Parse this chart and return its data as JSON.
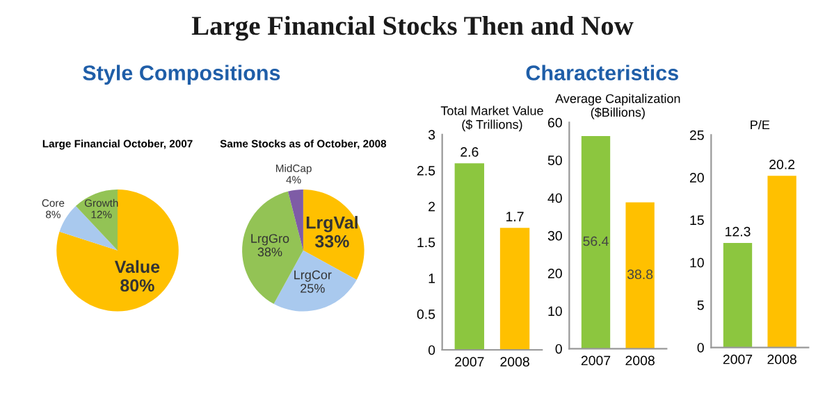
{
  "chart_data": [
    {
      "type": "pie",
      "title": "Large Financial October, 2007",
      "annotations": [
        "Large Financial Stocks Then and Now",
        "Style Compositions"
      ],
      "categories": [
        "Value",
        "Core",
        "Growth"
      ],
      "values": [
        80,
        8,
        12
      ],
      "value_labels": [
        "80%",
        "8%",
        "12%"
      ],
      "colors": [
        "#ffc000",
        "#a9c9ee",
        "#93c355"
      ]
    },
    {
      "type": "pie",
      "title": "Same Stocks as of October, 2008",
      "categories": [
        "LrgVal",
        "LrgCor",
        "LrgGro",
        "MidCap"
      ],
      "values": [
        33,
        25,
        38,
        4
      ],
      "value_labels": [
        "33%",
        "25%",
        "38%",
        "4%"
      ],
      "colors": [
        "#ffc000",
        "#a9c9ee",
        "#93c355",
        "#7e5ca6"
      ]
    },
    {
      "type": "bar",
      "title": "Total Market Value\n($ Trillions)",
      "annotations": [
        "Characteristics"
      ],
      "categories": [
        "2007",
        "2008"
      ],
      "values": [
        2.6,
        1.7
      ],
      "colors": [
        "#8cc63f",
        "#ffc000"
      ],
      "ylim": [
        0,
        3
      ],
      "yticks": [
        0,
        0.5,
        1,
        1.5,
        2,
        2.5,
        3
      ],
      "data_labels": true
    },
    {
      "type": "bar",
      "title": "Average Capitalization\n($Billions)",
      "categories": [
        "2007",
        "2008"
      ],
      "values": [
        56.4,
        38.8
      ],
      "colors": [
        "#8cc63f",
        "#ffc000"
      ],
      "ylim": [
        0,
        60
      ],
      "yticks": [
        0,
        10,
        20,
        30,
        40,
        50,
        60
      ],
      "data_labels": true
    },
    {
      "type": "bar",
      "title": "P/E",
      "categories": [
        "2007",
        "2008"
      ],
      "values": [
        12.3,
        20.2
      ],
      "colors": [
        "#8cc63f",
        "#ffc000"
      ],
      "ylim": [
        0,
        25
      ],
      "yticks": [
        0,
        5,
        10,
        15,
        20,
        25
      ],
      "data_labels": true
    }
  ]
}
